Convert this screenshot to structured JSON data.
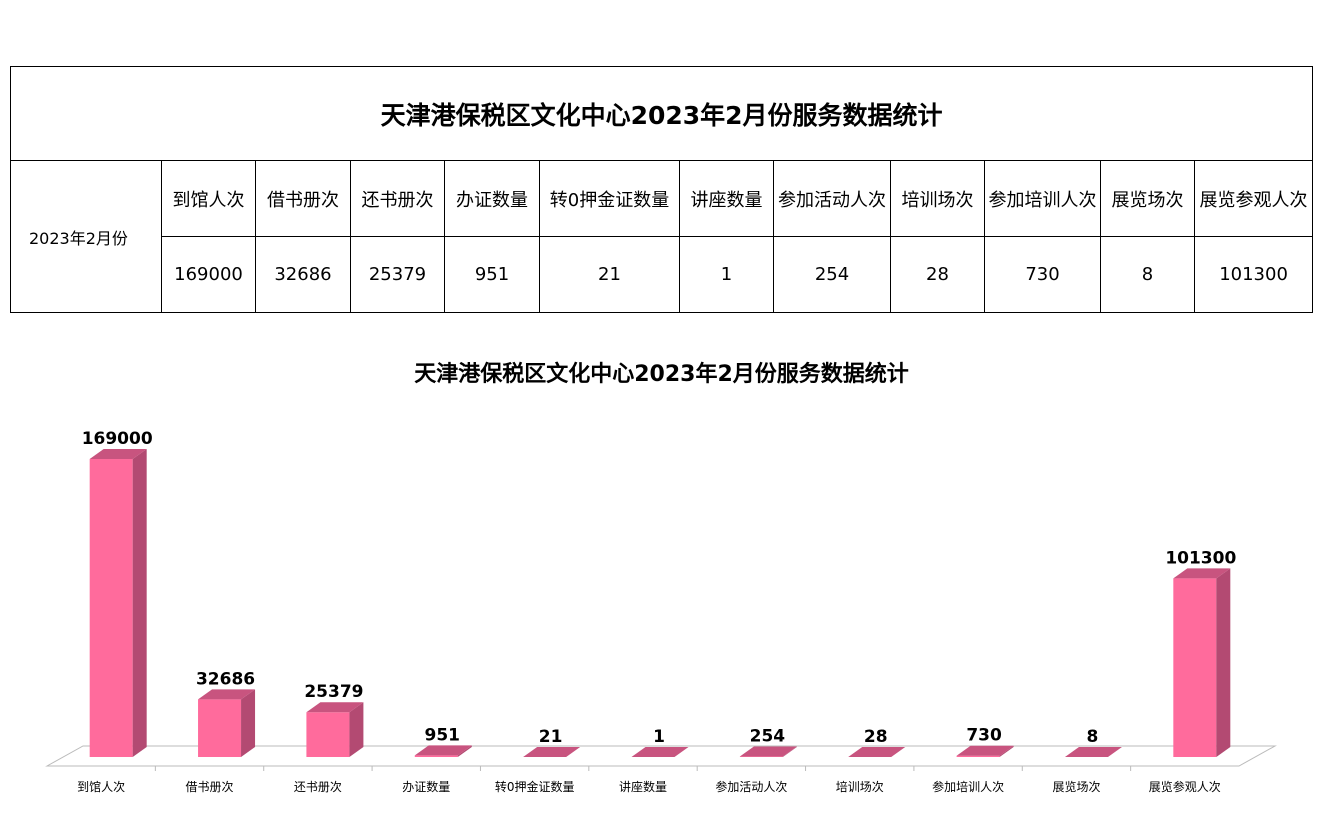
{
  "table": {
    "title": "天津港保税区文化中心2023年2月份服务数据统计",
    "period": "2023年2月份",
    "headers": [
      "到馆人次",
      "借书册次",
      "还书册次",
      "办证数量",
      "转0押金证数量",
      "讲座数量",
      "参加活动人次",
      "培训场次",
      "参加培训人次",
      "展览场次",
      "展览参观人次"
    ],
    "values": [
      "169000",
      "32686",
      "25379",
      "951",
      "21",
      "1",
      "254",
      "28",
      "730",
      "8",
      "101300"
    ]
  },
  "chart_data": {
    "type": "bar",
    "title": "天津港保税区文化中心2023年2月份服务数据统计",
    "categories": [
      "到馆人次",
      "借书册次",
      "还书册次",
      "办证数量",
      "转0押金证数量",
      "讲座数量",
      "参加活动人次",
      "培训场次",
      "参加培训人次",
      "展览场次",
      "展览参观人次"
    ],
    "values": [
      169000,
      32686,
      25379,
      951,
      21,
      1,
      254,
      28,
      730,
      8,
      101300
    ],
    "xlabel": "",
    "ylabel": "",
    "ylim": [
      0,
      169000
    ],
    "grid": false,
    "legend": "none",
    "style": "3d-column",
    "colors": {
      "bar_front": "#ff6b9c",
      "bar_side": "#b34a72",
      "bar_top": "#c8547f",
      "floor": "#bbbbbb"
    }
  }
}
